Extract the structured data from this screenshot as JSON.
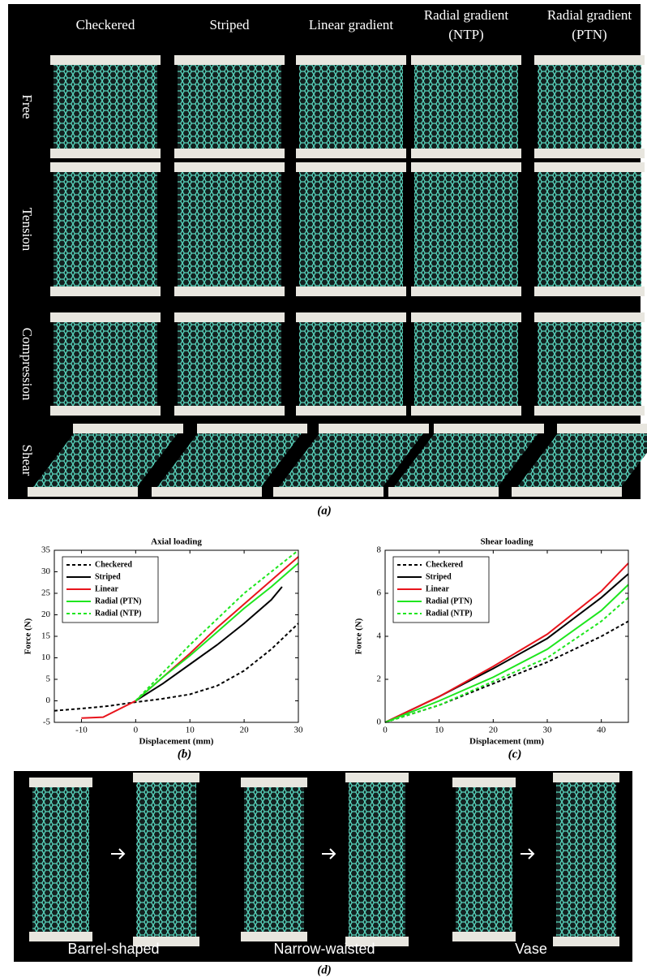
{
  "panel_a": {
    "caption": "(a)",
    "columns": [
      [
        "Checkered"
      ],
      [
        "Striped"
      ],
      [
        "Linear gradient"
      ],
      [
        "Radial gradient",
        "(NTP)"
      ],
      [
        "Radial gradient",
        "(PTN)"
      ]
    ],
    "rows": [
      "Free",
      "Tension",
      "Compression",
      "Shear"
    ]
  },
  "chart_data": [
    {
      "type": "line",
      "title": "Axial loading",
      "caption": "(b)",
      "x_label": "Displacement (mm)",
      "y_label": "Force (N)",
      "xlim": [
        -15,
        30
      ],
      "xticks": [
        -10,
        0,
        10,
        20,
        30
      ],
      "ylim": [
        -5,
        35
      ],
      "yticks": [
        -5,
        0,
        5,
        10,
        15,
        20,
        25,
        30,
        35
      ],
      "legend": "upper left",
      "grid": false,
      "series": [
        {
          "name": "Checkered",
          "color": "#000000",
          "style": "dashed",
          "x": [
            -15,
            -10,
            -5,
            0,
            5,
            10,
            15,
            20,
            25,
            30
          ],
          "values": [
            -2.3,
            -1.8,
            -1.2,
            -0.3,
            0.5,
            1.5,
            3.5,
            7,
            12,
            18
          ]
        },
        {
          "name": "Striped",
          "color": "#000000",
          "style": "solid",
          "x": [
            0,
            5,
            10,
            15,
            20,
            25,
            27
          ],
          "values": [
            0,
            4,
            8.5,
            13,
            18,
            23.5,
            26.5
          ]
        },
        {
          "name": "Linear",
          "color": "#e8141c",
          "style": "solid",
          "x": [
            -10,
            -6,
            0,
            5,
            10,
            15,
            20,
            25,
            30
          ],
          "values": [
            -4,
            -3.8,
            0,
            5.5,
            11,
            17,
            22.5,
            28,
            33.5
          ]
        },
        {
          "name": "Radial (PTN)",
          "color": "#1ee61e",
          "style": "solid",
          "x": [
            0,
            5,
            10,
            15,
            20,
            25,
            30
          ],
          "values": [
            0,
            5.5,
            10.5,
            16,
            21.5,
            26.5,
            32
          ]
        },
        {
          "name": "Radial (NTP)",
          "color": "#1ee61e",
          "style": "dashed",
          "x": [
            0,
            5,
            10,
            15,
            20,
            25,
            30
          ],
          "values": [
            0,
            6.5,
            13,
            19,
            25,
            30,
            35
          ]
        }
      ]
    },
    {
      "type": "line",
      "title": "Shear loading",
      "caption": "(c)",
      "x_label": "Displacement (mm)",
      "y_label": "Force (N)",
      "xlim": [
        0,
        45
      ],
      "xticks": [
        0,
        10,
        20,
        30,
        40
      ],
      "ylim": [
        0,
        8
      ],
      "yticks": [
        0,
        2,
        4,
        6,
        8
      ],
      "legend": "upper left",
      "grid": false,
      "series": [
        {
          "name": "Checkered",
          "color": "#000000",
          "style": "dashed",
          "x": [
            0,
            10,
            20,
            30,
            40,
            45
          ],
          "values": [
            0,
            0.8,
            1.8,
            2.8,
            4,
            4.7
          ]
        },
        {
          "name": "Striped",
          "color": "#000000",
          "style": "solid",
          "x": [
            0,
            10,
            20,
            30,
            40,
            45
          ],
          "values": [
            0,
            1.2,
            2.5,
            3.9,
            5.8,
            6.9
          ]
        },
        {
          "name": "Linear",
          "color": "#e8141c",
          "style": "solid",
          "x": [
            0,
            10,
            20,
            30,
            40,
            45
          ],
          "values": [
            0,
            1.2,
            2.6,
            4.1,
            6.1,
            7.4
          ]
        },
        {
          "name": "Radial (PTN)",
          "color": "#1ee61e",
          "style": "solid",
          "x": [
            0,
            10,
            20,
            30,
            40,
            45
          ],
          "values": [
            0,
            1.0,
            2.1,
            3.4,
            5.2,
            6.4
          ]
        },
        {
          "name": "Radial (NTP)",
          "color": "#1ee61e",
          "style": "dashed",
          "x": [
            0,
            10,
            20,
            30,
            40,
            45
          ],
          "values": [
            0,
            0.8,
            1.9,
            3.0,
            4.7,
            5.8
          ]
        }
      ]
    }
  ],
  "panel_d": {
    "caption": "(d)",
    "labels": [
      "Barrel-shaped",
      "Narrow-waisted",
      "Vase"
    ]
  }
}
